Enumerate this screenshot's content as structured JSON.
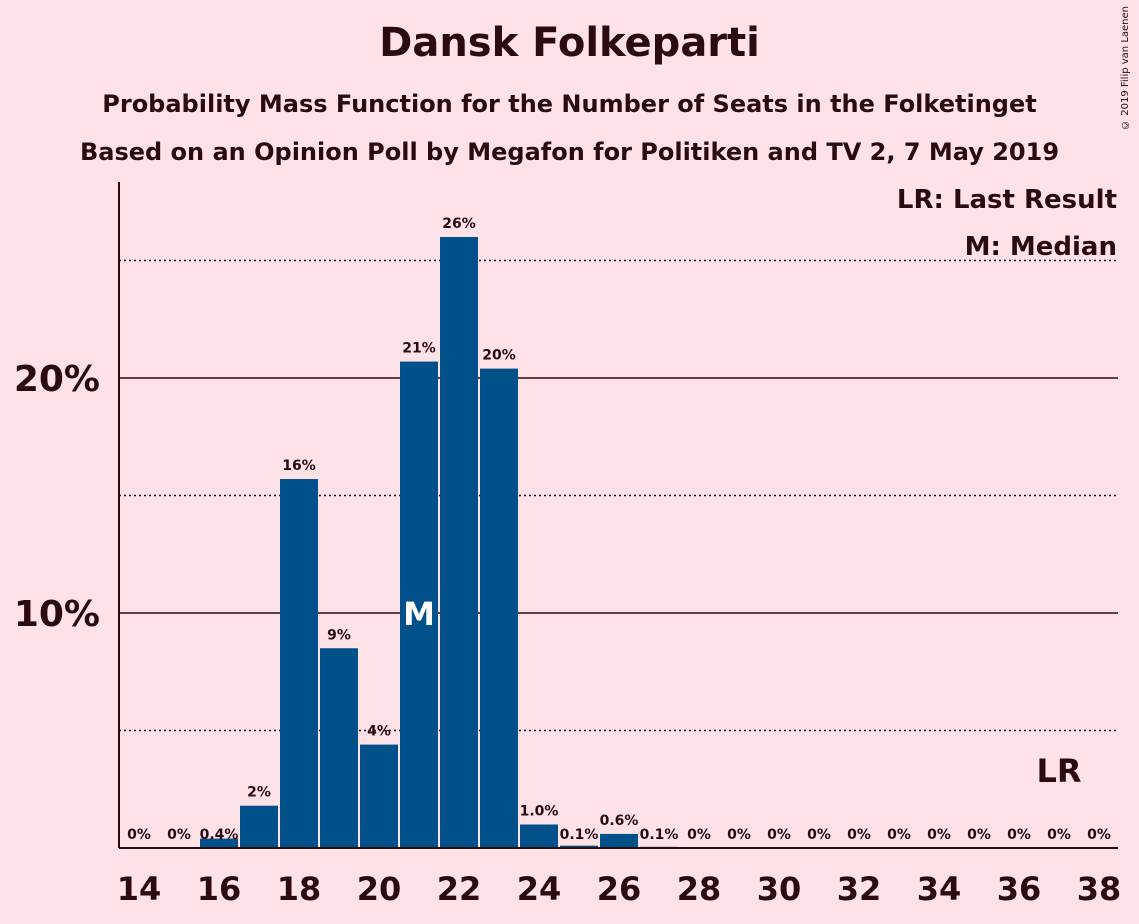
{
  "title": "Dansk Folkeparti",
  "subtitle1": "Probability Mass Function for the Number of Seats in the Folketinget",
  "subtitle2": "Based on an Opinion Poll by Megafon for Politiken and TV 2, 7 May 2019",
  "copyright": "© 2019 Filip van Laenen",
  "legend": {
    "lr": "LR: Last Result",
    "m": "M: Median"
  },
  "colors": {
    "bar": "#00508a",
    "background": "#fde3e7",
    "text": "#2b0b10"
  },
  "chart_data": {
    "type": "bar",
    "x": [
      14,
      15,
      16,
      17,
      18,
      19,
      20,
      21,
      22,
      23,
      24,
      25,
      26,
      27,
      28,
      29,
      30,
      31,
      32,
      33,
      34,
      35,
      36,
      37,
      38
    ],
    "values": [
      0,
      0,
      0.4,
      1.8,
      15.7,
      8.5,
      4.4,
      20.7,
      26.0,
      20.4,
      1.0,
      0.1,
      0.6,
      0.05,
      0,
      0,
      0,
      0,
      0,
      0,
      0,
      0,
      0,
      0,
      0
    ],
    "labels": [
      "0%",
      "0%",
      "0.4%",
      "2%",
      "16%",
      "9%",
      "4%",
      "21%",
      "26%",
      "20%",
      "1.0%",
      "0.1%",
      "0.6%",
      "0.1%",
      "0%",
      "0%",
      "0%",
      "0%",
      "0%",
      "0%",
      "0%",
      "0%",
      "0%",
      "0%",
      "0%"
    ],
    "xticks": [
      "14",
      "16",
      "18",
      "20",
      "22",
      "24",
      "26",
      "28",
      "30",
      "32",
      "34",
      "36",
      "38"
    ],
    "yticks": [
      "10%",
      "20%"
    ],
    "ylim": [
      0,
      28
    ],
    "median_seat": 21,
    "median_marker": "M",
    "last_result_seat": 37,
    "last_result_marker": "LR",
    "grid_solid": [
      10,
      20
    ],
    "grid_dotted": [
      5,
      15,
      25
    ]
  }
}
